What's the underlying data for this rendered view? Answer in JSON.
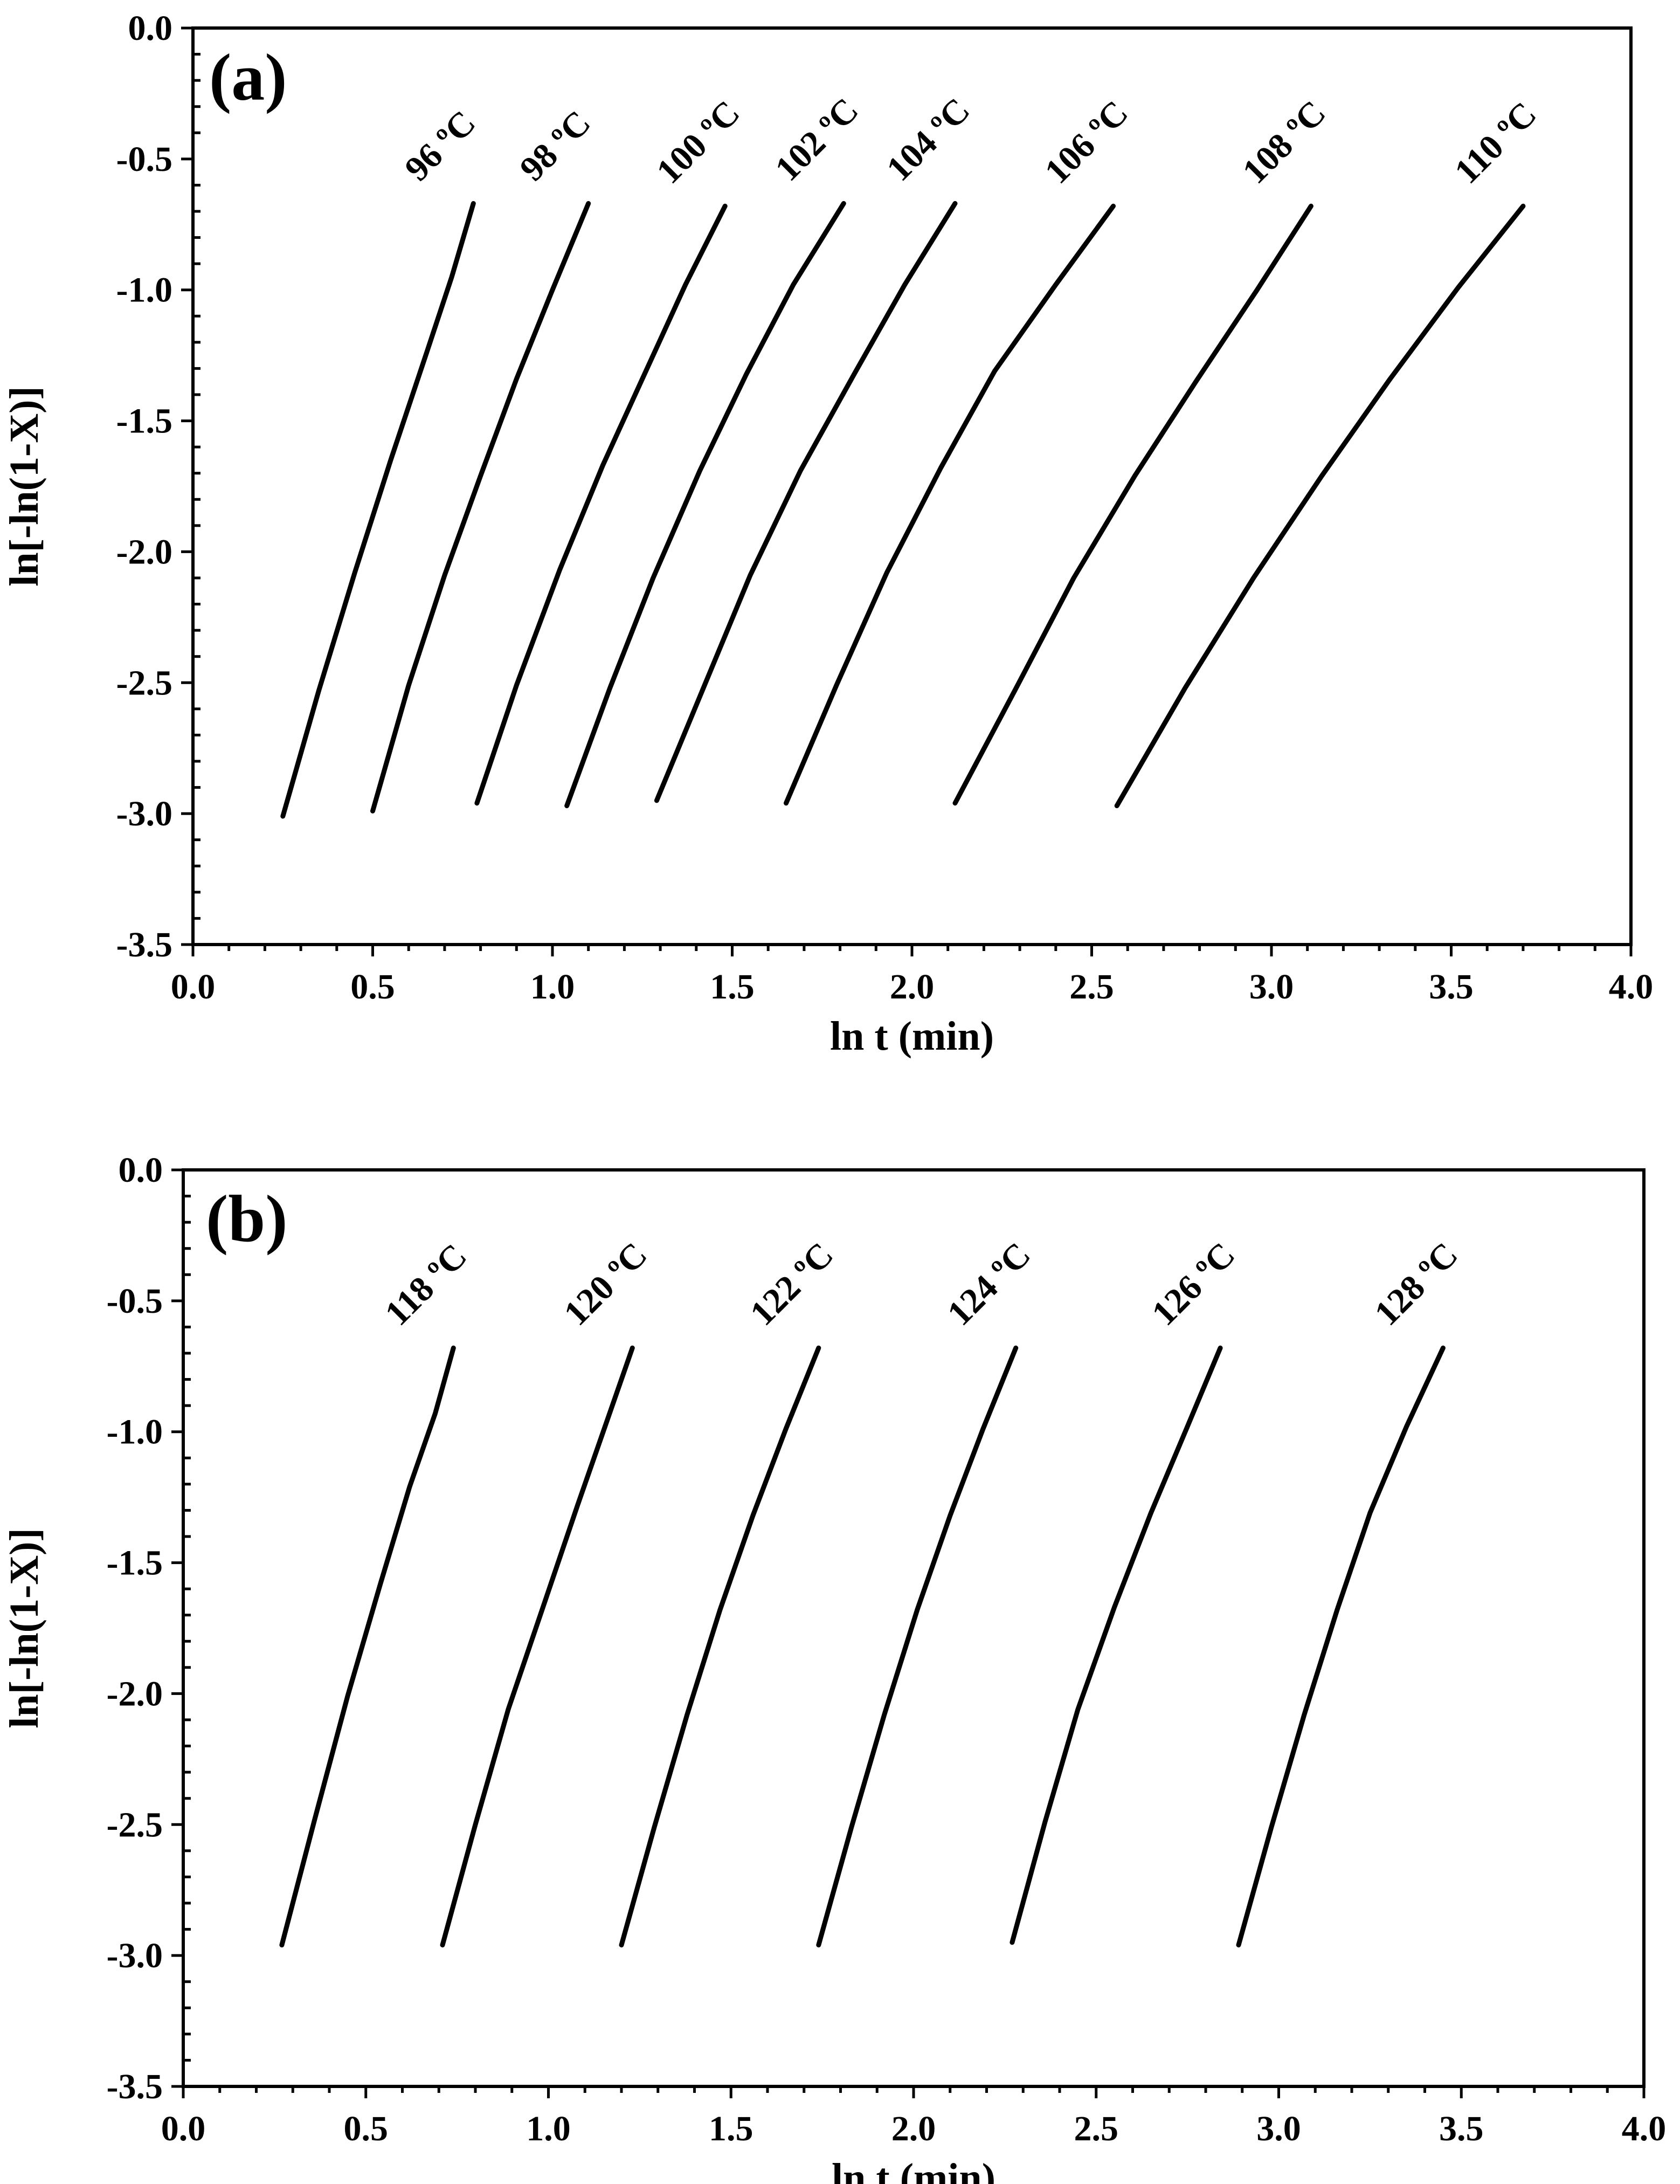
{
  "chart_data": [
    {
      "type": "line",
      "panel_label": "(a)",
      "xlabel": "ln t (min)",
      "ylabel": "ln[-ln(1-X)]",
      "xlim": [
        0.0,
        4.0
      ],
      "ylim": [
        -3.5,
        0.0
      ],
      "x_ticks": [
        "0.0",
        "0.5",
        "1.0",
        "1.5",
        "2.0",
        "2.5",
        "3.0",
        "3.5",
        "4.0"
      ],
      "y_ticks": [
        "0.0",
        "-0.5",
        "-1.0",
        "-1.5",
        "-2.0",
        "-2.5",
        "-3.0",
        "-3.5"
      ],
      "grid": false,
      "series": [
        {
          "name": "96 ºC",
          "x": [
            0.25,
            0.35,
            0.45,
            0.55,
            0.65,
            0.72,
            0.78
          ],
          "y": [
            -3.01,
            -2.53,
            -2.08,
            -1.65,
            -1.24,
            -0.95,
            -0.67
          ]
        },
        {
          "name": "98 ºC",
          "x": [
            0.5,
            0.6,
            0.7,
            0.8,
            0.9,
            1.0,
            1.1
          ],
          "y": [
            -2.99,
            -2.51,
            -2.09,
            -1.71,
            -1.34,
            -1.0,
            -0.67
          ]
        },
        {
          "name": "100 ºC",
          "x": [
            0.79,
            0.9,
            1.02,
            1.14,
            1.26,
            1.37,
            1.48
          ],
          "y": [
            -2.96,
            -2.51,
            -2.07,
            -1.67,
            -1.31,
            -0.98,
            -0.68
          ]
        },
        {
          "name": "102 ºC",
          "x": [
            1.04,
            1.16,
            1.28,
            1.41,
            1.54,
            1.67,
            1.81
          ],
          "y": [
            -2.97,
            -2.52,
            -2.1,
            -1.69,
            -1.32,
            -0.98,
            -0.67
          ]
        },
        {
          "name": "104 ºC",
          "x": [
            1.29,
            1.42,
            1.55,
            1.69,
            1.84,
            1.98,
            2.12
          ],
          "y": [
            -2.95,
            -2.52,
            -2.09,
            -1.69,
            -1.32,
            -0.98,
            -0.67
          ]
        },
        {
          "name": "106 ºC",
          "x": [
            1.65,
            1.79,
            1.93,
            2.08,
            2.23,
            2.4,
            2.56
          ],
          "y": [
            -2.96,
            -2.51,
            -2.08,
            -1.68,
            -1.31,
            -0.98,
            -0.68
          ]
        },
        {
          "name": "108 ºC",
          "x": [
            2.12,
            2.29,
            2.45,
            2.62,
            2.79,
            2.96,
            3.11
          ],
          "y": [
            -2.96,
            -2.52,
            -2.1,
            -1.71,
            -1.35,
            -1.0,
            -0.68
          ]
        },
        {
          "name": "110 ºC",
          "x": [
            2.57,
            2.76,
            2.95,
            3.14,
            3.33,
            3.52,
            3.7
          ],
          "y": [
            -2.97,
            -2.52,
            -2.1,
            -1.71,
            -1.34,
            -0.99,
            -0.68
          ]
        }
      ]
    },
    {
      "type": "line",
      "panel_label": "(b)",
      "xlabel": "ln t (min)",
      "ylabel": "ln[-ln(1-X)]",
      "xlim": [
        0.0,
        4.0
      ],
      "ylim": [
        -3.5,
        0.0
      ],
      "x_ticks": [
        "0.0",
        "0.5",
        "1.0",
        "1.5",
        "2.0",
        "2.5",
        "3.0",
        "3.5",
        "4.0"
      ],
      "y_ticks": [
        "0.0",
        "-0.5",
        "-1.0",
        "-1.5",
        "-2.0",
        "-2.5",
        "-3.0",
        "-3.5"
      ],
      "grid": false,
      "series": [
        {
          "name": "118 ºC",
          "x": [
            0.27,
            0.36,
            0.45,
            0.54,
            0.62,
            0.69,
            0.74
          ],
          "y": [
            -2.96,
            -2.48,
            -2.01,
            -1.58,
            -1.21,
            -0.93,
            -0.68
          ]
        },
        {
          "name": "120 ºC",
          "x": [
            0.71,
            0.8,
            0.89,
            0.99,
            1.08,
            1.16,
            1.23
          ],
          "y": [
            -2.96,
            -2.5,
            -2.06,
            -1.65,
            -1.28,
            -0.96,
            -0.68
          ]
        },
        {
          "name": "122 ºC",
          "x": [
            1.2,
            1.29,
            1.38,
            1.47,
            1.56,
            1.65,
            1.74
          ],
          "y": [
            -2.96,
            -2.51,
            -2.08,
            -1.68,
            -1.32,
            -0.99,
            -0.68
          ]
        },
        {
          "name": "124 ºC",
          "x": [
            1.74,
            1.83,
            1.92,
            2.01,
            2.1,
            2.19,
            2.28
          ],
          "y": [
            -2.96,
            -2.51,
            -2.08,
            -1.68,
            -1.32,
            -0.99,
            -0.68
          ]
        },
        {
          "name": "126 ºC",
          "x": [
            2.27,
            2.36,
            2.45,
            2.55,
            2.65,
            2.75,
            2.84
          ],
          "y": [
            -2.95,
            -2.49,
            -2.06,
            -1.67,
            -1.31,
            -0.98,
            -0.68
          ]
        },
        {
          "name": "128 ºC",
          "x": [
            2.89,
            2.98,
            3.07,
            3.16,
            3.25,
            3.35,
            3.45
          ],
          "y": [
            -2.96,
            -2.51,
            -2.08,
            -1.68,
            -1.31,
            -0.98,
            -0.68
          ]
        }
      ]
    }
  ]
}
